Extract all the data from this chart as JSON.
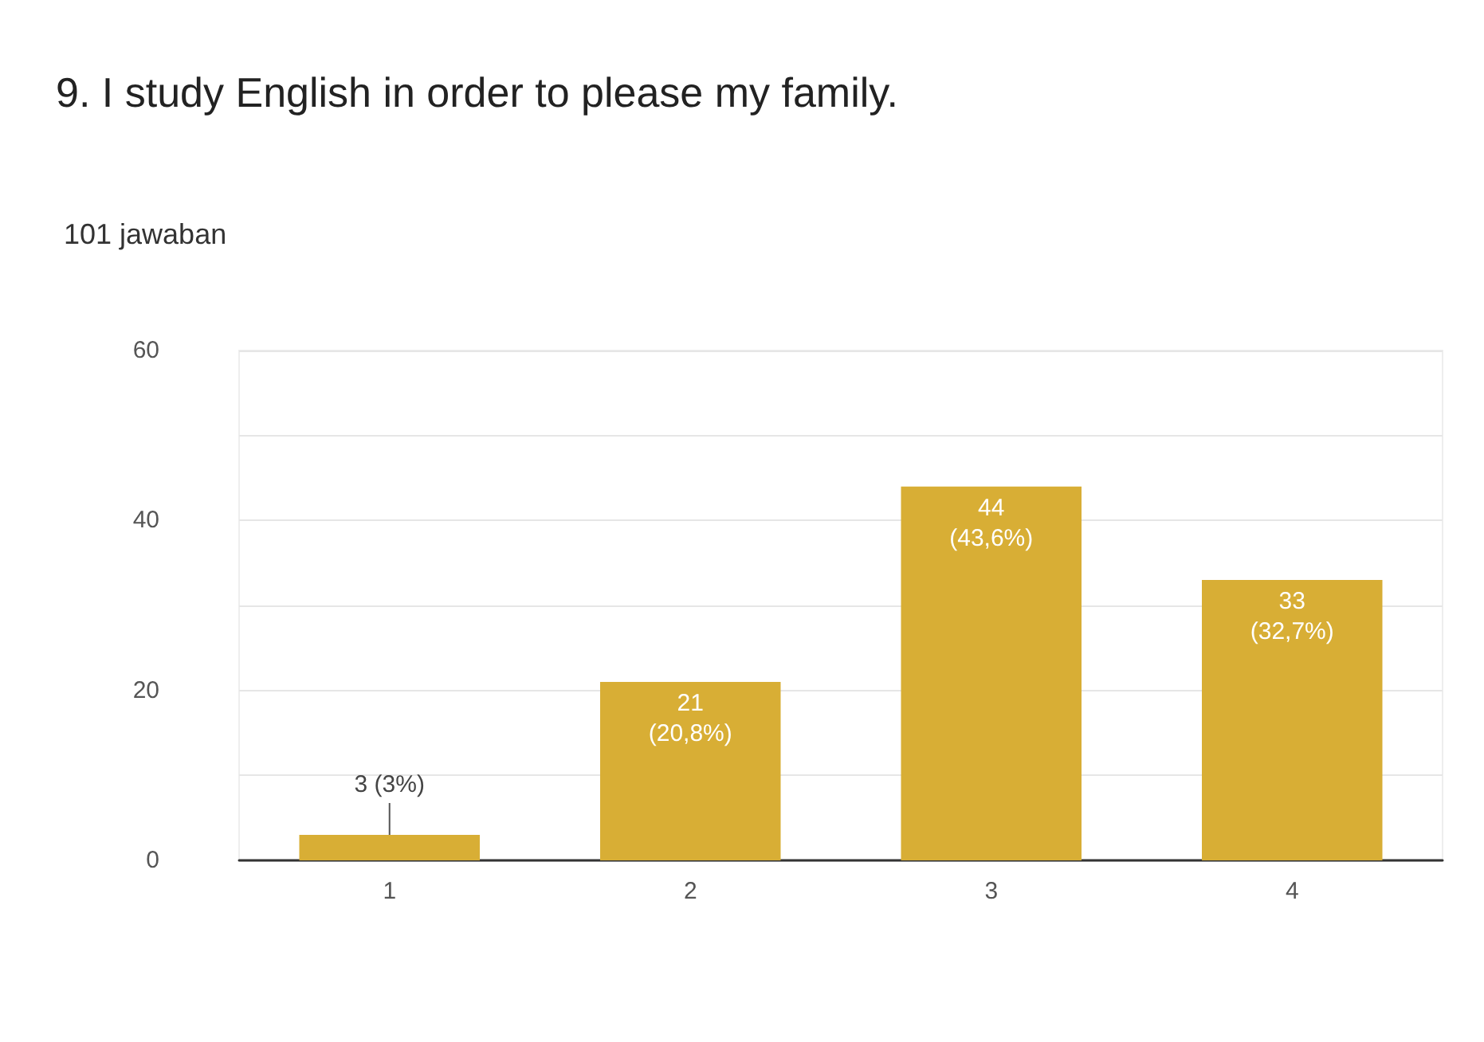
{
  "chart_data": {
    "type": "bar",
    "title": "9. I study English in order to please my family.",
    "subtitle": "101 jawaban",
    "categories": [
      "1",
      "2",
      "3",
      "4"
    ],
    "values": [
      3,
      21,
      44,
      33
    ],
    "value_labels": [
      "3 (3%)",
      "21 (20,8%)",
      "44 (43,6%)",
      "33 (32,7%)"
    ],
    "color": "#d8ae35",
    "ylim": [
      0,
      60
    ],
    "yticks": [
      0,
      {
        "value": 10,
        "label": null
      },
      20,
      {
        "value": 30,
        "label": null
      },
      40,
      {
        "value": 50,
        "label": null
      },
      60
    ],
    "grid": true
  }
}
